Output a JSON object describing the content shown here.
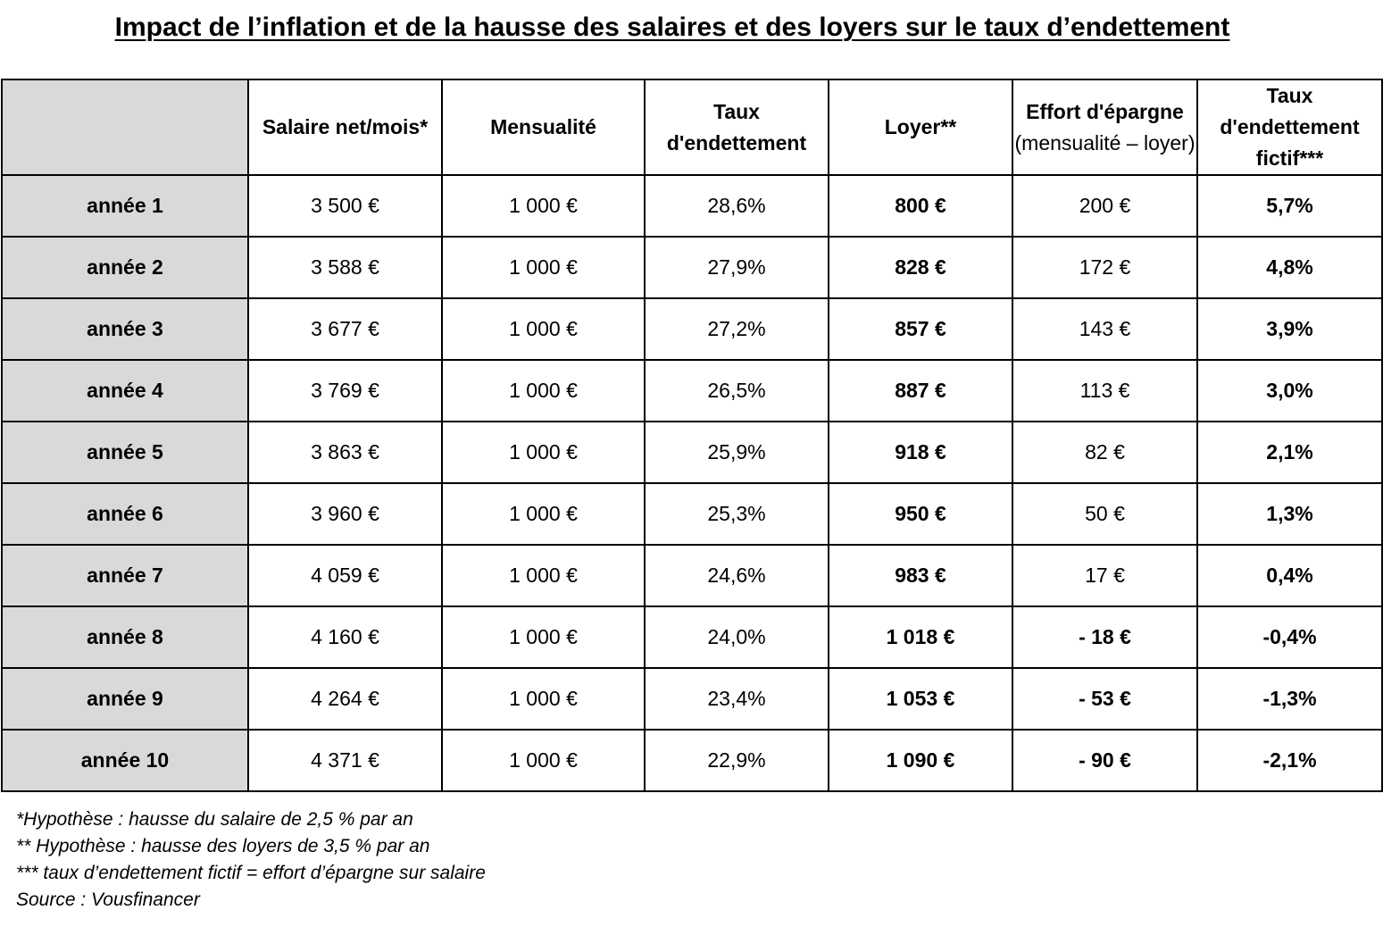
{
  "title": "Impact de l’inflation et de la hausse des salaires et des loyers sur le taux d’endettement",
  "chart_data": {
    "type": "table",
    "title": "Impact de l’inflation et de la hausse des salaires et des loyers sur le taux d’endettement",
    "columns": [
      "",
      "Salaire net/mois*",
      "Mensualité",
      "Taux d'endettement",
      "Loyer**",
      "Effort d'épargne (mensualité – loyer)",
      "Taux d'endettement fictif***"
    ],
    "header": {
      "salaire": "Salaire net/mois*",
      "mensualite": "Mensualité",
      "taux": "Taux d'endettement",
      "loyer": "Loyer**",
      "effort_bold": "Effort d'épargne",
      "effort_rest": "(mensualité – loyer)",
      "fictif": "Taux d'endettement fictif***"
    },
    "rows": [
      {
        "annee": "année 1",
        "salaire": "3 500 €",
        "mensualite": "1 000 €",
        "taux": "28,6%",
        "loyer": "800 €",
        "effort": "200 €",
        "fictif": "5,7%"
      },
      {
        "annee": "année 2",
        "salaire": "3 588 €",
        "mensualite": "1 000 €",
        "taux": "27,9%",
        "loyer": "828 €",
        "effort": "172 €",
        "fictif": "4,8%"
      },
      {
        "annee": "année 3",
        "salaire": "3 677 €",
        "mensualite": "1 000 €",
        "taux": "27,2%",
        "loyer": "857 €",
        "effort": "143 €",
        "fictif": "3,9%"
      },
      {
        "annee": "année 4",
        "salaire": "3 769 €",
        "mensualite": "1 000 €",
        "taux": "26,5%",
        "loyer": "887 €",
        "effort": "113 €",
        "fictif": "3,0%"
      },
      {
        "annee": "année 5",
        "salaire": "3 863 €",
        "mensualite": "1 000 €",
        "taux": "25,9%",
        "loyer": "918 €",
        "effort": "82 €",
        "fictif": "2,1%"
      },
      {
        "annee": "année 6",
        "salaire": "3 960 €",
        "mensualite": "1 000 €",
        "taux": "25,3%",
        "loyer": "950 €",
        "effort": "50 €",
        "fictif": "1,3%"
      },
      {
        "annee": "année 7",
        "salaire": "4 059 €",
        "mensualite": "1 000 €",
        "taux": "24,6%",
        "loyer": "983 €",
        "effort": "17 €",
        "fictif": "0,4%"
      },
      {
        "annee": "année 8",
        "salaire": "4 160 €",
        "mensualite": "1 000 €",
        "taux": "24,0%",
        "loyer": "1 018 €",
        "effort": "-  18 €",
        "fictif": "-0,4%"
      },
      {
        "annee": "année 9",
        "salaire": "4 264 €",
        "mensualite": "1 000 €",
        "taux": "23,4%",
        "loyer": "1 053 €",
        "effort": "- 53 €",
        "fictif": "-1,3%"
      },
      {
        "annee": "année 10",
        "salaire": "4 371 €",
        "mensualite": "1 000 €",
        "taux": "22,9%",
        "loyer": "1 090 €",
        "effort": "-  90 €",
        "fictif": "-2,1%"
      }
    ]
  },
  "footnotes": [
    "*Hypothèse : hausse du salaire de 2,5 % par an",
    "** Hypothèse : hausse des loyers de 3,5 % par an",
    "*** taux d’endettement fictif = effort d’épargne sur salaire",
    "Source : Vousfinancer"
  ]
}
